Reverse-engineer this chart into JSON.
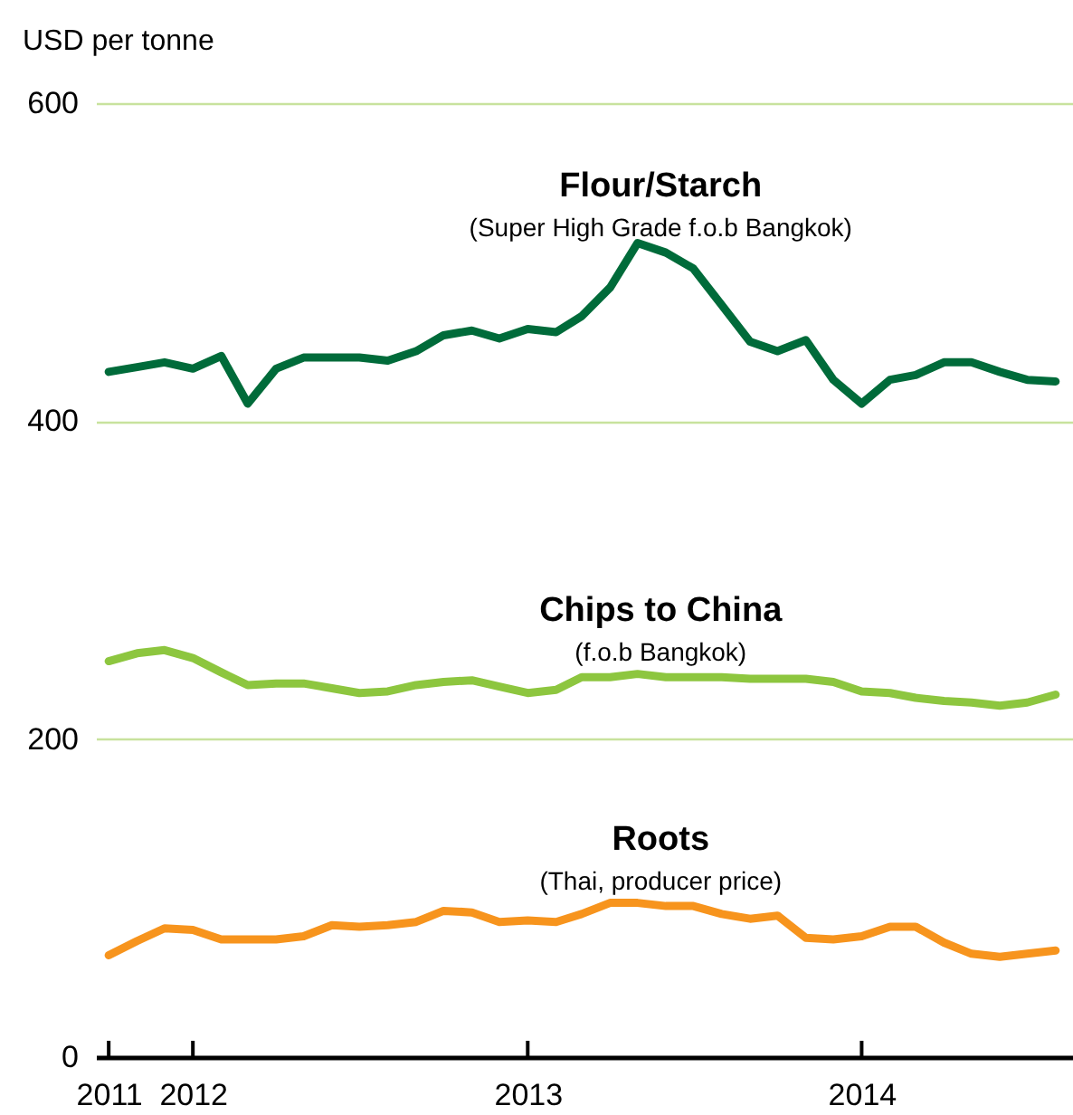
{
  "chart_data": {
    "type": "line",
    "ylabel": "USD per tonne",
    "x": [
      "2011-10",
      "2011-11",
      "2011-12",
      "2012-01",
      "2012-02",
      "2012-03",
      "2012-04",
      "2012-05",
      "2012-06",
      "2012-07",
      "2012-08",
      "2012-09",
      "2012-10",
      "2012-11",
      "2012-12",
      "2013-01",
      "2013-02",
      "2013-03",
      "2013-04",
      "2013-05",
      "2013-06",
      "2013-07",
      "2013-08",
      "2013-09",
      "2013-10",
      "2013-11",
      "2013-12",
      "2014-01",
      "2014-02",
      "2014-03",
      "2014-04",
      "2014-05",
      "2014-06",
      "2014-07",
      "2014-08"
    ],
    "xlim": [
      "2011-09-17",
      "2014-08-20"
    ],
    "xticks": [
      {
        "value": "2011-10",
        "label": "2011"
      },
      {
        "value": "2012-01",
        "label": "2012"
      },
      {
        "value": "2013-01",
        "label": "2013"
      },
      {
        "value": "2014-01",
        "label": "2014"
      }
    ],
    "ylim": [
      0,
      600
    ],
    "yticks": [
      0,
      200,
      400,
      600
    ],
    "grid": "y",
    "line_style": "solid",
    "series": [
      {
        "name": "Flour/Starch",
        "color": "#006b3a",
        "values": [
          431,
          434,
          437,
          433,
          441,
          411,
          433,
          440,
          440,
          440,
          438,
          444,
          454,
          457,
          452,
          458,
          456,
          466,
          484,
          512,
          506,
          496,
          473,
          450,
          444,
          451,
          426,
          411,
          426,
          429,
          437,
          437,
          431,
          426,
          425
        ]
      },
      {
        "name": "Chips to China",
        "color": "#8dc63f",
        "values": [
          249,
          254,
          256,
          251,
          242,
          234,
          235,
          235,
          232,
          229,
          230,
          234,
          236,
          237,
          233,
          229,
          231,
          239,
          239,
          241,
          239,
          239,
          239,
          238,
          238,
          238,
          236,
          230,
          229,
          226,
          224,
          223,
          221,
          223,
          228
        ]
      },
      {
        "name": "Roots",
        "color": "#f7941d",
        "values": [
          64,
          73,
          81,
          80,
          74,
          74,
          74,
          76,
          83,
          82,
          83,
          85,
          92,
          91,
          85,
          86,
          85,
          90,
          97,
          97,
          95,
          95,
          90,
          87,
          89,
          75,
          74,
          76,
          82,
          82,
          72,
          65,
          63,
          65,
          67
        ]
      }
    ],
    "annotations": [
      "(Super High Grade f.o.b Bangkok)",
      "(f.o.b Bangkok)",
      "(Thai, producer price)"
    ]
  }
}
